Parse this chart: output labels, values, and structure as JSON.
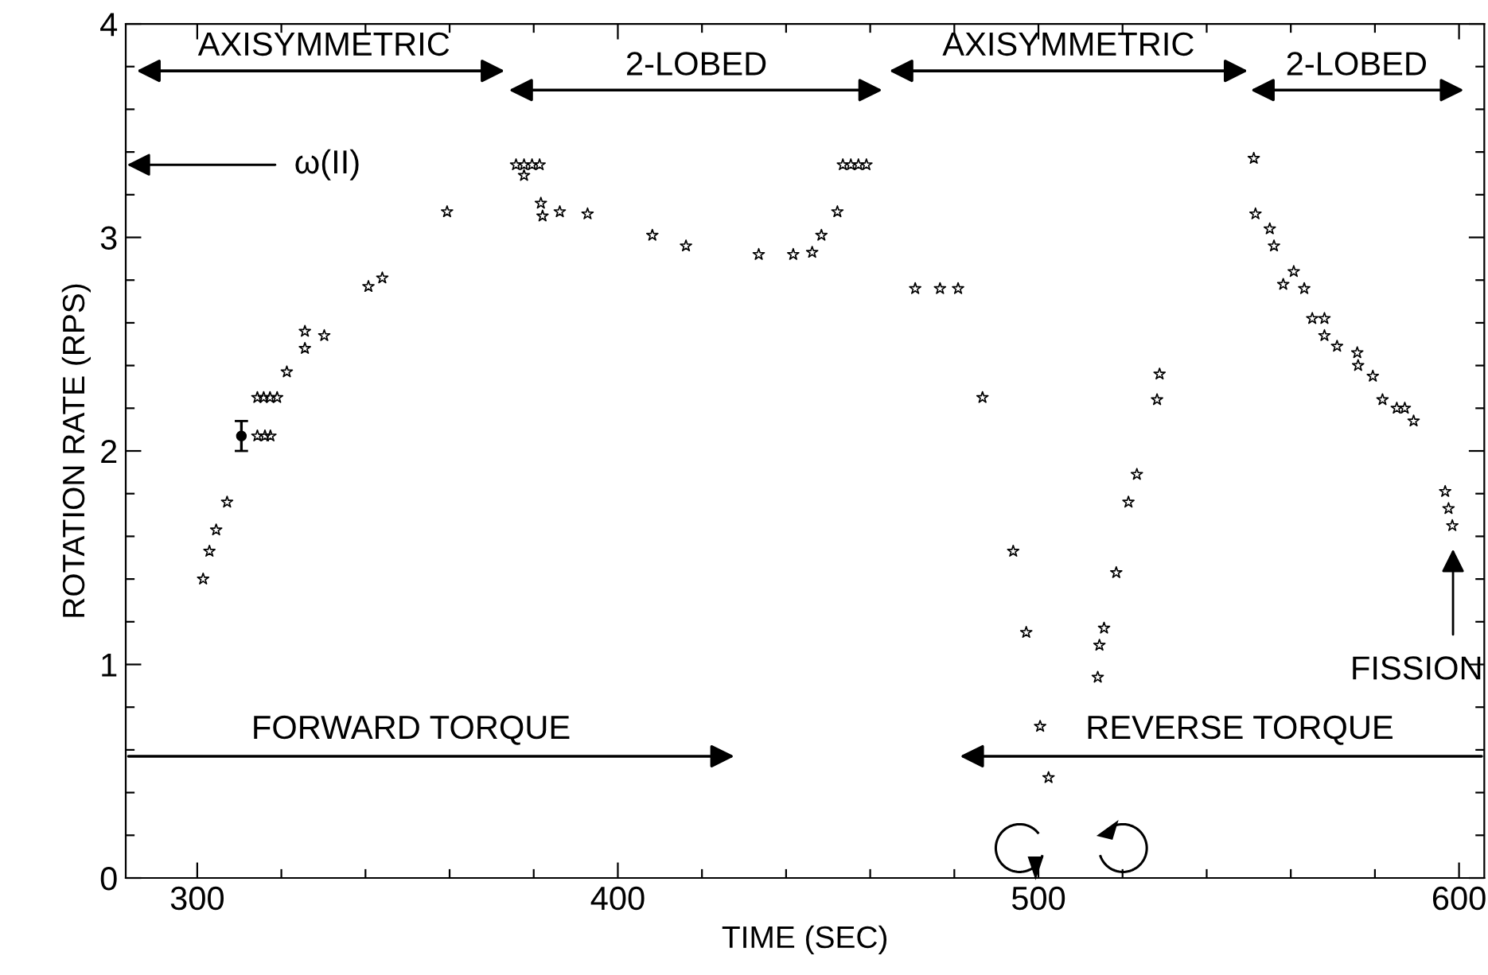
{
  "chart_data": {
    "type": "scatter",
    "xlabel": "TIME (SEC)",
    "ylabel": "ROTATION RATE (RPS)",
    "xlim": [
      283,
      606
    ],
    "ylim": [
      0,
      4
    ],
    "xticks": [
      300,
      {
        "value": 320,
        "label": null
      },
      {
        "value": 340,
        "label": null
      },
      {
        "value": 360,
        "label": null
      },
      {
        "value": 380,
        "label": null
      },
      400,
      {
        "value": 420,
        "label": null
      },
      {
        "value": 440,
        "label": null
      },
      {
        "value": 460,
        "label": null
      },
      {
        "value": 480,
        "label": null
      },
      500,
      {
        "value": 520,
        "label": null
      },
      {
        "value": 540,
        "label": null
      },
      {
        "value": 560,
        "label": null
      },
      {
        "value": 580,
        "label": null
      },
      600
    ],
    "yticks": [
      0,
      {
        "value": 0.2,
        "label": null
      },
      {
        "value": 0.4,
        "label": null
      },
      {
        "value": 0.6,
        "label": null
      },
      {
        "value": 0.8,
        "label": null
      },
      1,
      {
        "value": 1.2,
        "label": null
      },
      {
        "value": 1.4,
        "label": null
      },
      {
        "value": 1.6,
        "label": null
      },
      {
        "value": 1.8,
        "label": null
      },
      2,
      {
        "value": 2.2,
        "label": null
      },
      {
        "value": 2.4,
        "label": null
      },
      {
        "value": 2.6,
        "label": null
      },
      {
        "value": 2.8,
        "label": null
      },
      3,
      {
        "value": 3.2,
        "label": null
      },
      {
        "value": 3.4,
        "label": null
      },
      {
        "value": 3.6,
        "label": null
      },
      {
        "value": 3.8,
        "label": null
      },
      4
    ],
    "grid": false,
    "series": [
      {
        "color": "#000000",
        "marker": "star",
        "x": [
          301.4,
          302.9,
          304.5,
          307.1,
          314.3,
          316.1,
          317.4,
          314.3,
          315.8,
          317.3,
          319.0,
          321.3,
          325.6,
          325.6,
          330.2,
          340.7,
          344.0,
          359.4,
          375.8,
          377.7,
          379.6,
          381.4,
          377.7,
          381.7,
          382.1,
          386.2,
          392.8,
          408.2,
          416.2,
          433.5,
          441.7,
          446.2,
          448.4,
          452.2,
          453.5,
          455.4,
          457.2,
          459.1,
          470.7,
          476.6,
          480.9,
          486.7,
          494.0,
          497.1,
          500.4,
          502.4,
          514.1,
          514.5,
          515.6,
          518.5,
          521.4,
          523.4,
          528.2,
          528.8,
          551.2,
          551.6,
          555.0,
          556.0,
          558.2,
          560.7,
          563.2,
          565.1,
          568.0,
          568.0,
          571.0,
          575.8,
          576.0,
          579.5,
          581.8,
          585.2,
          587.1,
          589.2,
          596.7,
          597.5,
          598.4
        ],
        "values": [
          1.4,
          1.53,
          1.63,
          1.76,
          2.07,
          2.07,
          2.07,
          2.25,
          2.25,
          2.25,
          2.25,
          2.37,
          2.48,
          2.56,
          2.54,
          2.77,
          2.81,
          3.12,
          3.34,
          3.34,
          3.34,
          3.34,
          3.29,
          3.16,
          3.1,
          3.12,
          3.11,
          3.01,
          2.96,
          2.92,
          2.92,
          2.93,
          3.01,
          3.12,
          3.34,
          3.34,
          3.34,
          3.34,
          2.76,
          2.76,
          2.76,
          2.25,
          1.53,
          1.15,
          0.71,
          0.47,
          0.94,
          1.09,
          1.17,
          1.43,
          1.76,
          1.89,
          2.24,
          2.36,
          3.37,
          3.11,
          3.04,
          2.96,
          2.78,
          2.84,
          2.76,
          2.62,
          2.62,
          2.54,
          2.49,
          2.46,
          2.4,
          2.35,
          2.24,
          2.2,
          2.2,
          2.14,
          1.81,
          1.73,
          1.65
        ]
      },
      {
        "color": "#000000",
        "marker": "circle",
        "x": [
          310.5
        ],
        "values": [
          2.07
        ],
        "errors": [
          0.07
        ]
      }
    ],
    "annotations": [
      "AXISYMMETRIC",
      "2-LOBED",
      "AXISYMMETRIC",
      "2-LOBED",
      "FORWARD TORQUE",
      "REVERSE TORQUE",
      "ω(II)",
      "FISSION"
    ]
  }
}
